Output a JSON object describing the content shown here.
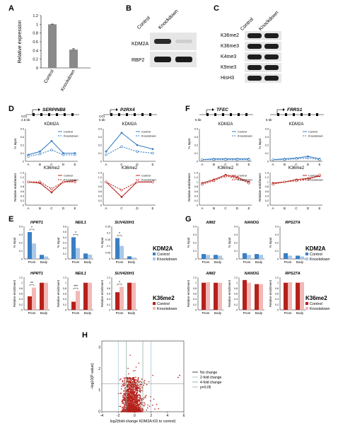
{
  "panels": {
    "A": {
      "letter": "A",
      "chart_data": {
        "type": "bar",
        "categories": [
          "Control",
          "Knockdown"
        ],
        "values": [
          1.0,
          0.42
        ],
        "errors": [
          0.005,
          0.02
        ],
        "ylabel": "Relative expression",
        "ylim": [
          0,
          1.2
        ],
        "yticks": [
          "0",
          "0.2",
          "0.4",
          "0.6",
          "0.8",
          "1",
          "1.2"
        ]
      }
    },
    "B": {
      "letter": "B",
      "col_labels": [
        "Control",
        "Knockdown"
      ],
      "row_labels": [
        "KDM2A",
        "RBP2"
      ]
    },
    "C": {
      "letter": "C",
      "col_labels": [
        "Control",
        "Knockdown"
      ],
      "row_labels": [
        "K36me2",
        "K36me3",
        "K4me3",
        "K9me3",
        "HisH3"
      ]
    },
    "D": {
      "letter": "D",
      "genes": [
        {
          "name": "SERPINB8",
          "scale": "2.5 kb",
          "cgi": "CGI",
          "sites": [
            "A",
            "B",
            "C",
            "D",
            "E"
          ],
          "kdm2a": {
            "title": "KDM2A",
            "ylabel": "% Input",
            "yticks": [
              "0",
              "0.1",
              "0.2",
              "0.3",
              "0.4"
            ],
            "control": [
              0.08,
              0.12,
              0.25,
              0.1,
              0.1
            ],
            "knockdown": [
              0.06,
              0.09,
              0.14,
              0.08,
              0.08
            ]
          },
          "k36": {
            "title": "K36me2",
            "ylabel": "Relative enrichment",
            "yticks": [
              "0",
              "0.2",
              "0.4",
              "0.6",
              "0.8",
              "1",
              "1.2",
              "1.4"
            ],
            "control": [
              1.0,
              0.95,
              0.55,
              1.0,
              1.05
            ],
            "knockdown": [
              1.0,
              1.0,
              0.7,
              1.0,
              1.0
            ]
          }
        },
        {
          "name": "P2RX4",
          "scale": "5 kb",
          "cgi": "CGI",
          "sites": [
            "A",
            "C",
            "D",
            "E"
          ],
          "kdm2a": {
            "title": "KDM2A",
            "ylabel": "",
            "yticks": [
              "0",
              "0.1",
              "0.2",
              "0.3",
              "0.4"
            ],
            "control": [
              0.12,
              0.35,
              0.2,
              0.15
            ],
            "knockdown": [
              0.08,
              0.18,
              0.12,
              0.1
            ]
          },
          "k36": {
            "title": "K36me2",
            "ylabel": "",
            "yticks": [
              "0",
              "0.2",
              "0.4",
              "0.6",
              "0.8",
              "1",
              "1.2",
              "1.4"
            ],
            "control": [
              1.0,
              0.35,
              1.0,
              1.0
            ],
            "knockdown": [
              1.0,
              0.65,
              1.0,
              1.0
            ]
          }
        }
      ],
      "legend": [
        "Control",
        "Knockdown"
      ]
    },
    "F": {
      "letter": "F",
      "genes": [
        {
          "name": "TFEC",
          "scale": "5 kb",
          "sites": [
            "A",
            "B",
            "C",
            "D",
            "E"
          ],
          "kdm2a": {
            "title": "KDM2A",
            "ylabel": "% Input",
            "yticks": [
              "0",
              "0.1",
              "0.2",
              "0.3",
              "0.4"
            ],
            "control": [
              0.02,
              0.03,
              0.03,
              0.03,
              0.03
            ],
            "knockdown": [
              0.02,
              0.02,
              0.02,
              0.02,
              0.02
            ]
          },
          "k36": {
            "title": "K36me2",
            "ylabel": "Relative enrichment",
            "yticks": [
              "0",
              "0.2",
              "0.4",
              "0.6",
              "0.8",
              "1",
              "1.2",
              "1.4"
            ],
            "control": [
              0.95,
              1.1,
              1.3,
              1.2,
              1.0
            ],
            "knockdown": [
              0.9,
              1.05,
              1.25,
              1.15,
              0.95
            ]
          }
        },
        {
          "name": "FRRS1",
          "scale": "5 kb",
          "sites": [
            "A",
            "B",
            "C",
            "D",
            "E"
          ],
          "kdm2a": {
            "title": "KDM2A",
            "ylabel": "% Input",
            "yticks": [
              "0",
              "0.1",
              "0.2",
              "0.3",
              "0.4"
            ],
            "control": [
              0.02,
              0.03,
              0.04,
              0.06,
              0.03
            ],
            "knockdown": [
              0.02,
              0.02,
              0.03,
              0.04,
              0.02
            ]
          },
          "k36": {
            "title": "K36me2",
            "ylabel": "Relative enrichment",
            "yticks": [
              "0",
              "0.2",
              "0.4",
              "0.6",
              "0.8",
              "1",
              "1.2",
              "1.4"
            ],
            "control": [
              0.95,
              1.0,
              1.1,
              1.15,
              1.25
            ],
            "knockdown": [
              0.9,
              1.0,
              1.05,
              1.1,
              1.3
            ]
          }
        }
      ],
      "legend": [
        "Control",
        "Knockdown"
      ]
    },
    "E": {
      "letter": "E",
      "kdm2a_label": "KDM2A",
      "k36_label": "K36me2",
      "legend": [
        "Control",
        "Knockdown"
      ],
      "categories": [
        "Prom",
        "Body"
      ],
      "kdm2a_ylabel": "% Input",
      "k36_ylabel": "Relative enrichment",
      "genes": [
        {
          "name": "HPRT1",
          "kdm2a_yticks": [
            "0",
            "0.1",
            "0.2",
            "0.3",
            "0.4"
          ],
          "kdm2a_max": 0.4,
          "kdm2a_control": [
            0.33,
            0.05
          ],
          "kdm2a_knockdown": [
            0.19,
            0.03
          ],
          "kdm2a_sig": "*",
          "k36_control": [
            0.5,
            1.0
          ],
          "k36_knockdown": [
            0.82,
            1.0
          ],
          "k36_sig": "**"
        },
        {
          "name": "NEIL1",
          "kdm2a_yticks": [
            "0",
            "0.1",
            "0.2",
            "0.3",
            "0.4",
            "0.5",
            "0.6"
          ],
          "kdm2a_max": 0.6,
          "kdm2a_control": [
            0.4,
            0.1
          ],
          "kdm2a_knockdown": [
            0.2,
            0.08
          ],
          "kdm2a_sig": "*",
          "k36_control": [
            0.3,
            1.0
          ],
          "k36_knockdown": [
            0.7,
            1.0
          ],
          "k36_sig": "***"
        },
        {
          "name": "SUV420H1",
          "kdm2a_yticks": [
            "0",
            "0.05",
            "0.1",
            "0.15",
            "0.2",
            "0.25"
          ],
          "kdm2a_max": 0.25,
          "kdm2a_control": [
            0.16,
            0.02
          ],
          "kdm2a_knockdown": [
            0.1,
            0.01
          ],
          "kdm2a_sig": "*",
          "k36_control": [
            0.65,
            1.0
          ],
          "k36_knockdown": [
            0.85,
            1.0
          ],
          "k36_sig": "*"
        }
      ],
      "k36_yticks": [
        "0",
        "0.2",
        "0.4",
        "0.6",
        "0.8",
        "1",
        "1.2"
      ]
    },
    "G": {
      "letter": "G",
      "kdm2a_label": "KDM2A",
      "k36_label": "K36me2",
      "legend": [
        "Control",
        "Knockdown"
      ],
      "categories": [
        "Prom",
        "Body"
      ],
      "kdm2a_ylabel": "% Input",
      "k36_ylabel": "Relative enrichment",
      "genes": [
        {
          "name": "AIM2",
          "kdm2a_control": [
            0.06,
            0.05
          ],
          "kdm2a_knockdown": [
            0.05,
            0.04
          ],
          "k36_control": [
            1.0,
            1.0
          ],
          "k36_knockdown": [
            1.02,
            1.0
          ]
        },
        {
          "name": "NANOG",
          "kdm2a_control": [
            0.07,
            0.06
          ],
          "kdm2a_knockdown": [
            0.05,
            0.05
          ],
          "k36_control": [
            1.1,
            0.95
          ],
          "k36_knockdown": [
            1.0,
            0.95
          ]
        },
        {
          "name": "RPS27A",
          "kdm2a_control": [
            0.07,
            0.04
          ],
          "kdm2a_knockdown": [
            0.04,
            0.03
          ],
          "k36_control": [
            1.0,
            1.0
          ],
          "k36_knockdown": [
            1.02,
            1.02
          ]
        }
      ],
      "kdm2a_yticks": [
        "0",
        "0.1",
        "0.2",
        "0.3",
        "0.4"
      ],
      "k36_yticks": [
        "0",
        "0.2",
        "0.4",
        "0.6",
        "0.8",
        "1",
        "1.2"
      ]
    },
    "H": {
      "letter": "H",
      "chart_data": {
        "type": "scatter",
        "xlabel": "log2(fold-change KDM2A KD to control)",
        "ylabel": "−log10(P-value)",
        "xticks": [
          "-4",
          "-2",
          "0",
          "2",
          "4",
          "6"
        ],
        "yticks": [
          "0",
          "1",
          "2",
          "3"
        ],
        "xlim": [
          -4,
          6
        ],
        "ylim": [
          0,
          3.3
        ],
        "vlines_fold": [
          -2,
          -1,
          1,
          2
        ],
        "hline_p": 1.3,
        "legend": [
          "No change",
          "2-fold change",
          "4-fold change",
          "p=0.05"
        ]
      }
    }
  },
  "colors": {
    "blue": "#3a7fc4",
    "lightblue": "#a9c8e8",
    "red": "#b5211b",
    "pink": "#f2b8b6",
    "gray": "#8a8a8a"
  }
}
